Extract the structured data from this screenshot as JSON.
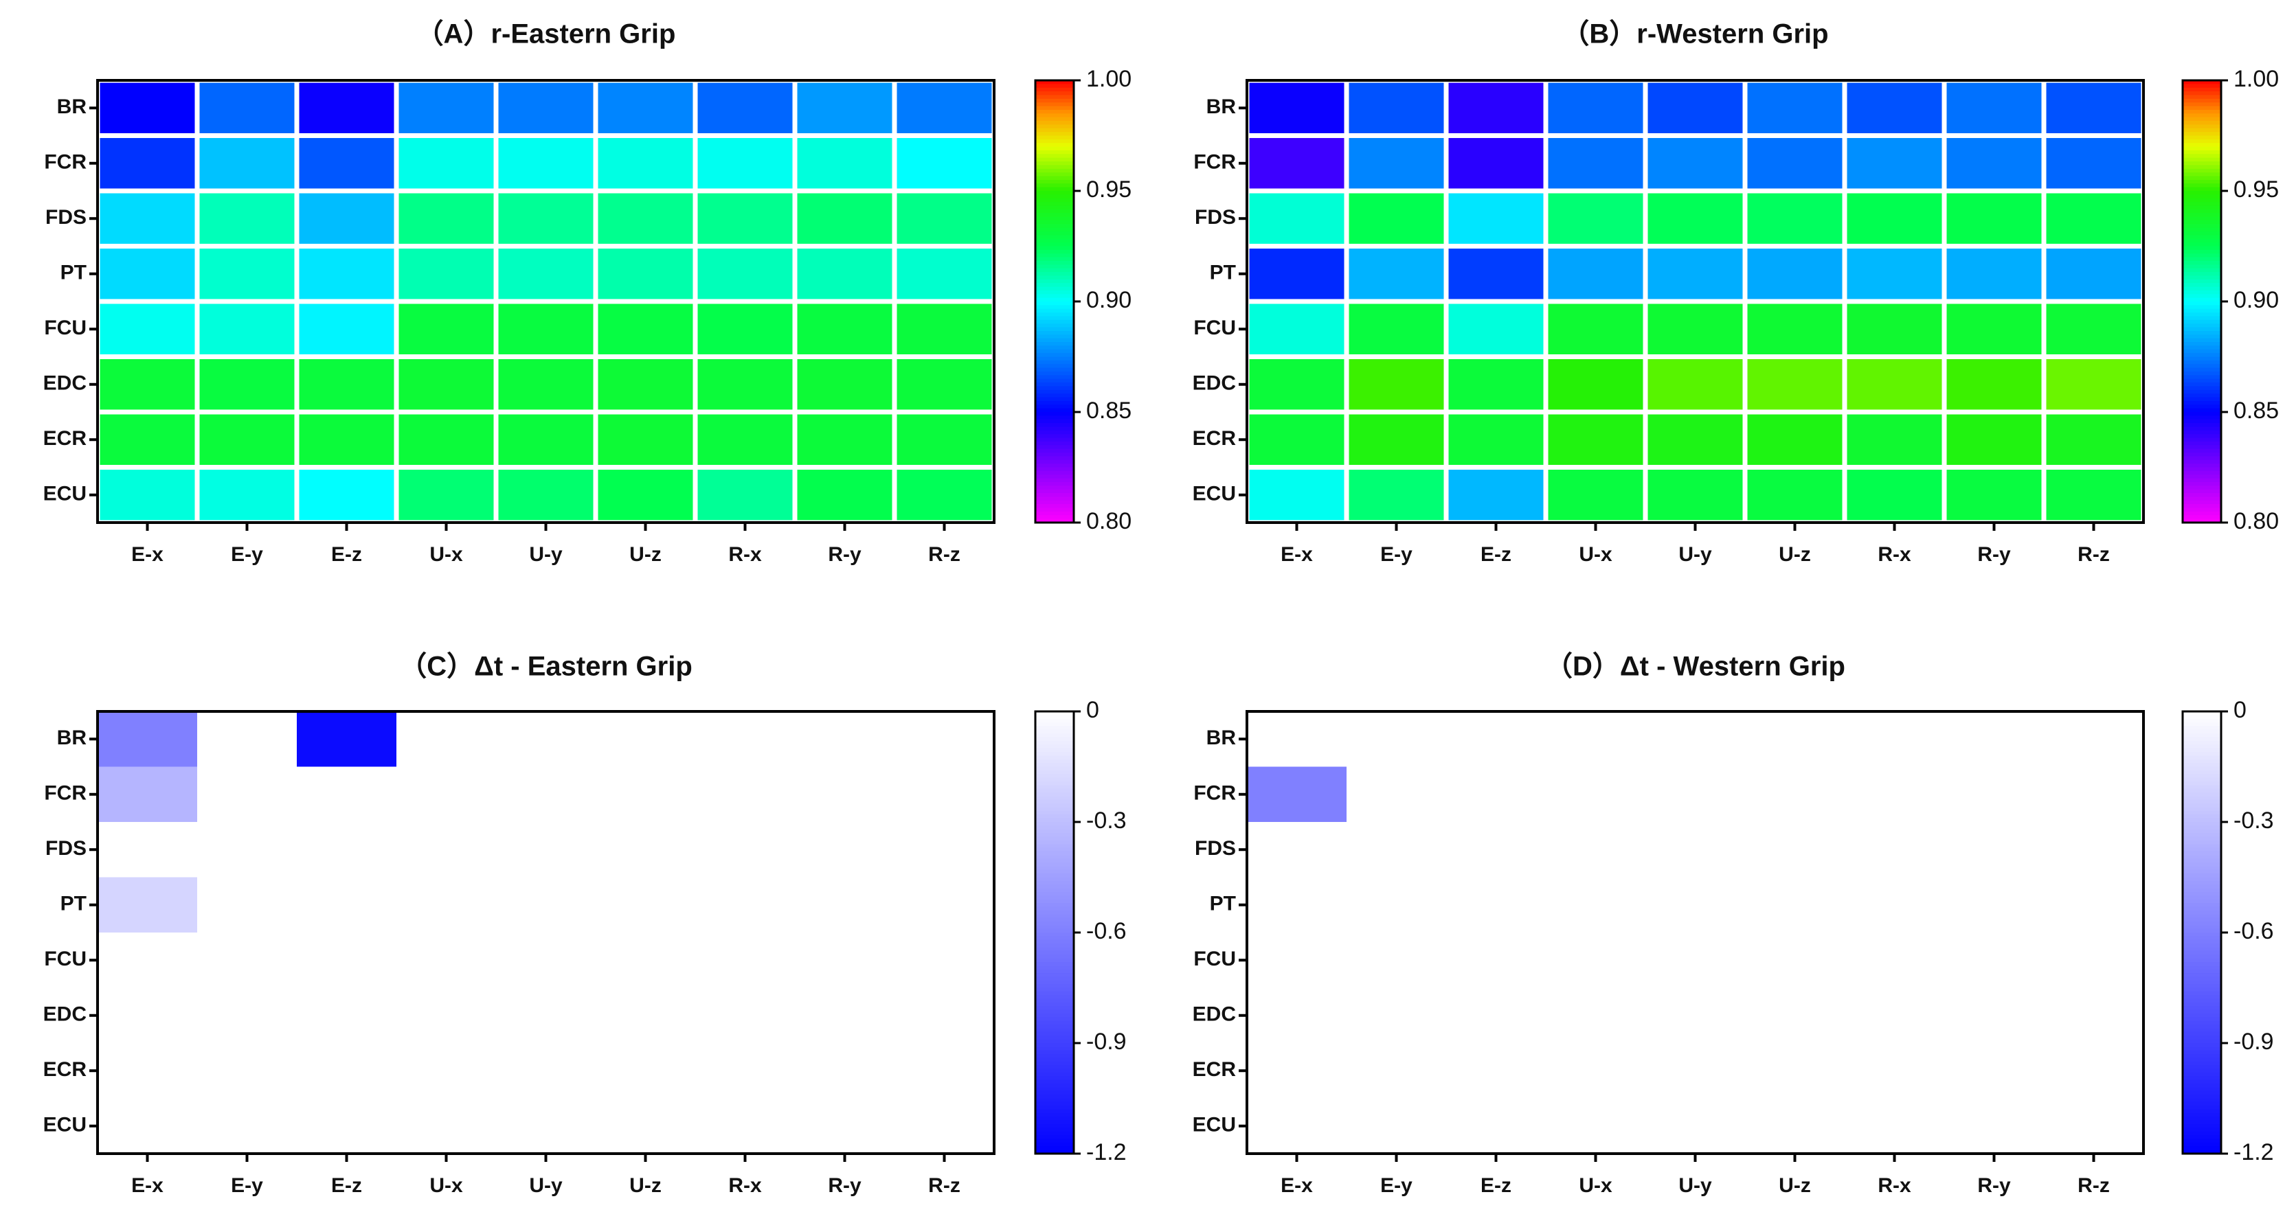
{
  "chart_data": [
    {
      "type": "heatmap",
      "title": "（A）r-Eastern Grip",
      "xlabel": "",
      "ylabel": "",
      "categories": [
        "E-x",
        "E-y",
        "E-z",
        "U-x",
        "U-y",
        "U-z",
        "R-x",
        "R-y",
        "R-z"
      ],
      "rows": [
        "BR",
        "FCR",
        "FDS",
        "PT",
        "FCU",
        "EDC",
        "ECR",
        "ECU"
      ],
      "values": [
        [
          0.85,
          0.87,
          0.848,
          0.875,
          0.874,
          0.876,
          0.87,
          0.88,
          0.874
        ],
        [
          0.86,
          0.888,
          0.867,
          0.903,
          0.902,
          0.904,
          0.902,
          0.905,
          0.9
        ],
        [
          0.893,
          0.91,
          0.887,
          0.917,
          0.915,
          0.916,
          0.916,
          0.92,
          0.917
        ],
        [
          0.893,
          0.907,
          0.895,
          0.911,
          0.909,
          0.912,
          0.91,
          0.91,
          0.907
        ],
        [
          0.902,
          0.905,
          0.898,
          0.93,
          0.93,
          0.929,
          0.927,
          0.93,
          0.931
        ],
        [
          0.932,
          0.93,
          0.931,
          0.933,
          0.932,
          0.933,
          0.932,
          0.933,
          0.932
        ],
        [
          0.931,
          0.932,
          0.932,
          0.932,
          0.931,
          0.933,
          0.931,
          0.932,
          0.931
        ],
        [
          0.905,
          0.904,
          0.9,
          0.92,
          0.921,
          0.925,
          0.915,
          0.926,
          0.924
        ]
      ],
      "colorbar": {
        "min": 0.8,
        "max": 1.0,
        "ticks": [
          "1.00",
          "0.95",
          "0.90",
          "0.85",
          "0.80"
        ],
        "palette": "rainbow"
      }
    },
    {
      "type": "heatmap",
      "title": "（B）r-Western Grip",
      "xlabel": "",
      "ylabel": "",
      "categories": [
        "E-x",
        "E-y",
        "E-z",
        "U-x",
        "U-y",
        "U-z",
        "R-x",
        "R-y",
        "R-z"
      ],
      "rows": [
        "BR",
        "FCR",
        "FDS",
        "PT",
        "FCU",
        "EDC",
        "ECR",
        "ECU"
      ],
      "values": [
        [
          0.848,
          0.866,
          0.842,
          0.87,
          0.864,
          0.872,
          0.866,
          0.872,
          0.866
        ],
        [
          0.838,
          0.876,
          0.842,
          0.872,
          0.876,
          0.872,
          0.878,
          0.874,
          0.87
        ],
        [
          0.906,
          0.925,
          0.895,
          0.92,
          0.924,
          0.923,
          0.925,
          0.927,
          0.926
        ],
        [
          0.858,
          0.885,
          0.862,
          0.882,
          0.884,
          0.883,
          0.886,
          0.884,
          0.882
        ],
        [
          0.905,
          0.93,
          0.905,
          0.934,
          0.934,
          0.934,
          0.935,
          0.934,
          0.933
        ],
        [
          0.932,
          0.952,
          0.932,
          0.948,
          0.955,
          0.956,
          0.956,
          0.952,
          0.957
        ],
        [
          0.932,
          0.945,
          0.933,
          0.945,
          0.943,
          0.944,
          0.935,
          0.945,
          0.94
        ],
        [
          0.902,
          0.92,
          0.886,
          0.93,
          0.93,
          0.93,
          0.926,
          0.93,
          0.93
        ]
      ],
      "colorbar": {
        "min": 0.8,
        "max": 1.0,
        "ticks": [
          "1.00",
          "0.95",
          "0.90",
          "0.85",
          "0.80"
        ],
        "palette": "rainbow"
      }
    },
    {
      "type": "heatmap",
      "title": "（C）Δt - Eastern Grip",
      "xlabel": "",
      "ylabel": "",
      "categories": [
        "E-x",
        "E-y",
        "E-z",
        "U-x",
        "U-y",
        "U-z",
        "R-x",
        "R-y",
        "R-z"
      ],
      "rows": [
        "BR",
        "FCR",
        "FDS",
        "PT",
        "FCU",
        "EDC",
        "ECR",
        "ECU"
      ],
      "values": [
        [
          -0.6,
          0,
          -1.15,
          0,
          0,
          0,
          0,
          0,
          0
        ],
        [
          -0.35,
          0,
          0,
          0,
          0,
          0,
          0,
          0,
          0
        ],
        [
          0,
          0,
          0,
          0,
          0,
          0,
          0,
          0,
          0
        ],
        [
          -0.2,
          0,
          0,
          0,
          0,
          0,
          0,
          0,
          0
        ],
        [
          0,
          0,
          0,
          0,
          0,
          0,
          0,
          0,
          0
        ],
        [
          0,
          0,
          0,
          0,
          0,
          0,
          0,
          0,
          0
        ],
        [
          0,
          0,
          0,
          0,
          0,
          0,
          0,
          0,
          0
        ],
        [
          0,
          0,
          0,
          0,
          0,
          0,
          0,
          0,
          0
        ]
      ],
      "colorbar": {
        "min": -1.2,
        "max": 0,
        "ticks": [
          "0",
          "-0.3",
          "-0.6",
          "-0.9",
          "-1.2"
        ],
        "palette": "white-blue"
      }
    },
    {
      "type": "heatmap",
      "title": "（D）Δt - Western Grip",
      "xlabel": "",
      "ylabel": "",
      "categories": [
        "E-x",
        "E-y",
        "E-z",
        "U-x",
        "U-y",
        "U-z",
        "R-x",
        "R-y",
        "R-z"
      ],
      "rows": [
        "BR",
        "FCR",
        "FDS",
        "PT",
        "FCU",
        "EDC",
        "ECR",
        "ECU"
      ],
      "values": [
        [
          0,
          0,
          0,
          0,
          0,
          0,
          0,
          0,
          0
        ],
        [
          -0.6,
          0,
          0,
          0,
          0,
          0,
          0,
          0,
          0
        ],
        [
          0,
          0,
          0,
          0,
          0,
          0,
          0,
          0,
          0
        ],
        [
          0,
          0,
          0,
          0,
          0,
          0,
          0,
          0,
          0
        ],
        [
          0,
          0,
          0,
          0,
          0,
          0,
          0,
          0,
          0
        ],
        [
          0,
          0,
          0,
          0,
          0,
          0,
          0,
          0,
          0
        ],
        [
          0,
          0,
          0,
          0,
          0,
          0,
          0,
          0,
          0
        ],
        [
          0,
          0,
          0,
          0,
          0,
          0,
          0,
          0,
          0
        ]
      ],
      "colorbar": {
        "min": -1.2,
        "max": 0,
        "ticks": [
          "0",
          "-0.3",
          "-0.6",
          "-0.9",
          "-1.2"
        ],
        "palette": "white-blue"
      }
    }
  ]
}
